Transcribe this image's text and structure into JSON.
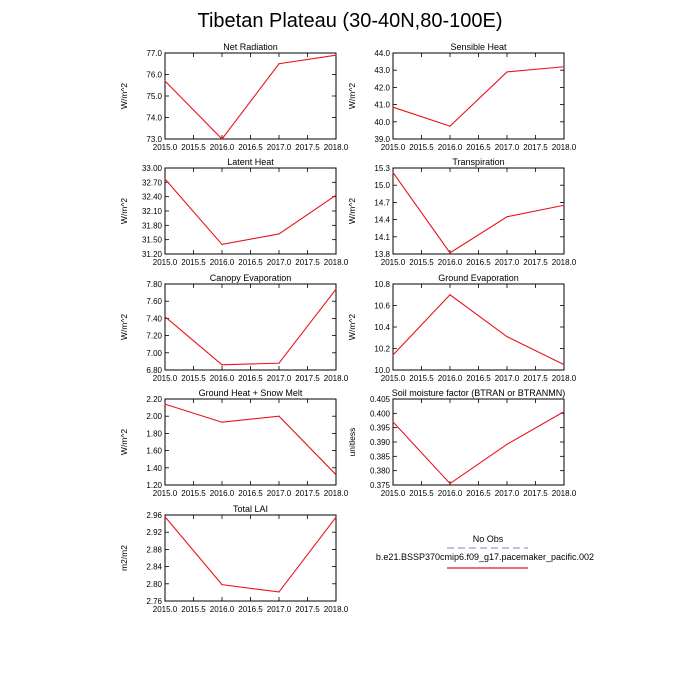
{
  "figure": {
    "title": "Tibetan Plateau (30-40N,80-100E)"
  },
  "legend": {
    "obs_label": "No Obs",
    "obs_color": "#9a9acd",
    "model_label": "b.e21.BSSP370cmip6.f09_g17.pacemaker_pacific.002",
    "model_color": "#e8141c"
  },
  "chart_data": [
    {
      "type": "line",
      "title": "Net Radiation",
      "ylabel": "W/m^2",
      "x": [
        2015,
        2016,
        2017,
        2018
      ],
      "xlim": [
        2015,
        2018
      ],
      "xticks": [
        "2015.0",
        "2015.5",
        "2016.0",
        "2016.5",
        "2017.0",
        "2017.5",
        "2018.0"
      ],
      "ylim": [
        73,
        77
      ],
      "yticks": [
        "73.0",
        "74.0",
        "75.0",
        "76.0",
        "77.0"
      ],
      "series": [
        {
          "name": "b.e21.BSSP370cmip6.f09_g17.pacemaker_pacific.002",
          "values": [
            75.7,
            73.0,
            76.5,
            76.9
          ]
        }
      ]
    },
    {
      "type": "line",
      "title": "Sensible Heat",
      "ylabel": "W/m^2",
      "x": [
        2015,
        2016,
        2017,
        2018
      ],
      "xlim": [
        2015,
        2018
      ],
      "xticks": [
        "2015.0",
        "2015.5",
        "2016.0",
        "2016.5",
        "2017.0",
        "2017.5",
        "2018.0"
      ],
      "ylim": [
        39,
        44
      ],
      "yticks": [
        "39.0",
        "40.0",
        "41.0",
        "42.0",
        "43.0",
        "44.0"
      ],
      "series": [
        {
          "name": "b.e21.BSSP370cmip6.f09_g17.pacemaker_pacific.002",
          "values": [
            40.85,
            39.75,
            42.9,
            43.2
          ]
        }
      ]
    },
    {
      "type": "line",
      "title": "Latent Heat",
      "ylabel": "W/m^2",
      "x": [
        2015,
        2016,
        2017,
        2018
      ],
      "xlim": [
        2015,
        2018
      ],
      "xticks": [
        "2015.0",
        "2015.5",
        "2016.0",
        "2016.5",
        "2017.0",
        "2017.5",
        "2018.0"
      ],
      "ylim": [
        31.2,
        33.0
      ],
      "yticks": [
        "31.20",
        "31.50",
        "31.80",
        "32.10",
        "32.40",
        "32.70",
        "33.00"
      ],
      "series": [
        {
          "name": "b.e21.BSSP370cmip6.f09_g17.pacemaker_pacific.002",
          "values": [
            32.77,
            31.4,
            31.62,
            32.43
          ]
        }
      ]
    },
    {
      "type": "line",
      "title": "Transpiration",
      "ylabel": "W/m^2",
      "x": [
        2015,
        2016,
        2017,
        2018
      ],
      "xlim": [
        2015,
        2018
      ],
      "xticks": [
        "2015.0",
        "2015.5",
        "2016.0",
        "2016.5",
        "2017.0",
        "2017.5",
        "2018.0"
      ],
      "ylim": [
        13.8,
        15.3
      ],
      "yticks": [
        "13.8",
        "14.1",
        "14.4",
        "14.7",
        "15.0",
        "15.3"
      ],
      "series": [
        {
          "name": "b.e21.BSSP370cmip6.f09_g17.pacemaker_pacific.002",
          "values": [
            15.22,
            13.82,
            14.45,
            14.65
          ]
        }
      ]
    },
    {
      "type": "line",
      "title": "Canopy Evaporation",
      "ylabel": "W/m^2",
      "x": [
        2015,
        2016,
        2017,
        2018
      ],
      "xlim": [
        2015,
        2018
      ],
      "xticks": [
        "2015.0",
        "2015.5",
        "2016.0",
        "2016.5",
        "2017.0",
        "2017.5",
        "2018.0"
      ],
      "ylim": [
        6.8,
        7.8
      ],
      "yticks": [
        "6.80",
        "7.00",
        "7.20",
        "7.40",
        "7.60",
        "7.80"
      ],
      "series": [
        {
          "name": "b.e21.BSSP370cmip6.f09_g17.pacemaker_pacific.002",
          "values": [
            7.42,
            6.86,
            6.88,
            7.74
          ]
        }
      ]
    },
    {
      "type": "line",
      "title": "Ground Evaporation",
      "ylabel": "W/m^2",
      "x": [
        2015,
        2016,
        2017,
        2018
      ],
      "xlim": [
        2015,
        2018
      ],
      "xticks": [
        "2015.0",
        "2015.5",
        "2016.0",
        "2016.5",
        "2017.0",
        "2017.5",
        "2018.0"
      ],
      "ylim": [
        10.0,
        10.8
      ],
      "yticks": [
        "10.0",
        "10.2",
        "10.4",
        "10.6",
        "10.8"
      ],
      "series": [
        {
          "name": "b.e21.BSSP370cmip6.f09_g17.pacemaker_pacific.002",
          "values": [
            10.14,
            10.7,
            10.31,
            10.05
          ]
        }
      ]
    },
    {
      "type": "line",
      "title": "Ground Heat + Snow Melt",
      "ylabel": "W/m^2",
      "x": [
        2015,
        2016,
        2017,
        2018
      ],
      "xlim": [
        2015,
        2018
      ],
      "xticks": [
        "2015.0",
        "2015.5",
        "2016.0",
        "2016.5",
        "2017.0",
        "2017.5",
        "2018.0"
      ],
      "ylim": [
        1.2,
        2.2
      ],
      "yticks": [
        "1.20",
        "1.40",
        "1.60",
        "1.80",
        "2.00",
        "2.20"
      ],
      "series": [
        {
          "name": "b.e21.BSSP370cmip6.f09_g17.pacemaker_pacific.002",
          "values": [
            2.14,
            1.93,
            2.0,
            1.32
          ]
        }
      ]
    },
    {
      "type": "line",
      "title": "Soil moisture factor (BTRAN or BTRANMN)",
      "ylabel": "unitless",
      "x": [
        2015,
        2016,
        2017,
        2018
      ],
      "xlim": [
        2015,
        2018
      ],
      "xticks": [
        "2015.0",
        "2015.5",
        "2016.0",
        "2016.5",
        "2017.0",
        "2017.5",
        "2018.0"
      ],
      "ylim": [
        0.375,
        0.405
      ],
      "yticks": [
        "0.375",
        "0.380",
        "0.385",
        "0.390",
        "0.395",
        "0.400",
        "0.405"
      ],
      "series": [
        {
          "name": "b.e21.BSSP370cmip6.f09_g17.pacemaker_pacific.002",
          "values": [
            0.397,
            0.3755,
            0.3892,
            0.4006
          ]
        }
      ]
    },
    {
      "type": "line",
      "title": "Total LAI",
      "ylabel": "m2/m2",
      "x": [
        2015,
        2016,
        2017,
        2018
      ],
      "xlim": [
        2015,
        2018
      ],
      "xticks": [
        "2015.0",
        "2015.5",
        "2016.0",
        "2016.5",
        "2017.0",
        "2017.5",
        "2018.0"
      ],
      "ylim": [
        2.76,
        2.96
      ],
      "yticks": [
        "2.76",
        "2.80",
        "2.84",
        "2.88",
        "2.92",
        "2.96"
      ],
      "series": [
        {
          "name": "b.e21.BSSP370cmip6.f09_g17.pacemaker_pacific.002",
          "values": [
            2.956,
            2.798,
            2.781,
            2.955
          ]
        }
      ]
    }
  ]
}
